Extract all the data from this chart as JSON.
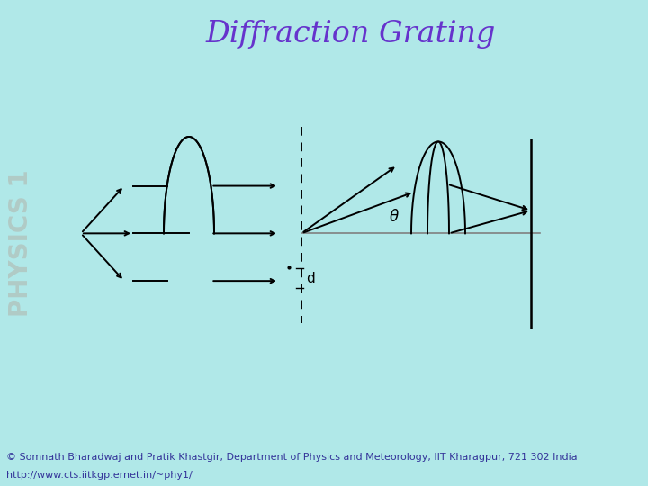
{
  "title": "Diffraction Grating",
  "title_color": "#6633cc",
  "title_fontsize": 24,
  "bg_color": "#b0e8e8",
  "footer_bg": "#cceecc",
  "footer_text1": "© Somnath Bharadwaj and Pratik Khastgir, Department of Physics and Meteorology, IIT Kharagpur, 721 302 India",
  "footer_text2": "http://www.cts.iitkgp.ernet.in/~phy1/",
  "footer_fontsize": 8,
  "side_text": "PHYSICS 1",
  "side_text_color": "#b0b8b0",
  "line_color": "#000000",
  "axis_line_color": "#808080",
  "theta_label": "θ",
  "d_label": "d"
}
